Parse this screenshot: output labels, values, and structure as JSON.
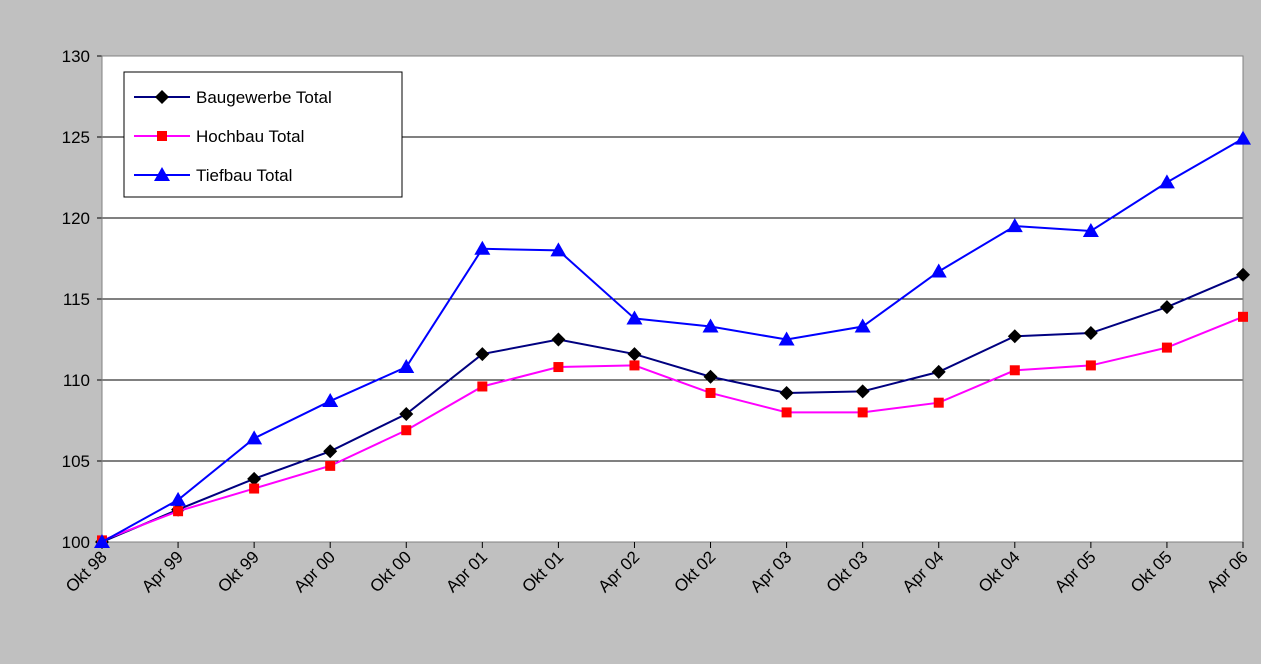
{
  "chart_data": {
    "type": "line",
    "categories": [
      "Okt 98",
      "Apr 99",
      "Okt 99",
      "Apr 00",
      "Okt 00",
      "Apr 01",
      "Okt 01",
      "Apr 02",
      "Okt 02",
      "Apr 03",
      "Okt 03",
      "Apr 04",
      "Okt 04",
      "Apr 05",
      "Okt 05",
      "Apr 06"
    ],
    "series": [
      {
        "name": "Baugewerbe Total",
        "color": "#000080",
        "marker_color": "#000000",
        "marker": "diamond",
        "values": [
          100,
          102,
          103.9,
          105.6,
          107.9,
          111.6,
          112.5,
          111.6,
          110.2,
          109.2,
          109.3,
          110.5,
          112.7,
          112.9,
          114.5,
          116.5
        ]
      },
      {
        "name": "Hochbau Total",
        "color": "#ff00ff",
        "marker_color": "#ff0000",
        "marker": "square",
        "values": [
          100.1,
          101.9,
          103.3,
          104.7,
          106.9,
          109.6,
          110.8,
          110.9,
          109.2,
          108.0,
          108.0,
          108.6,
          110.6,
          110.9,
          112.0,
          113.9
        ]
      },
      {
        "name": "Tiefbau Total",
        "color": "#0000ff",
        "marker_color": "#0000ff",
        "marker": "triangle",
        "values": [
          100,
          102.6,
          106.4,
          108.7,
          110.8,
          118.1,
          118.0,
          113.8,
          113.3,
          112.5,
          113.3,
          116.7,
          119.5,
          119.2,
          122.2,
          124.9
        ]
      }
    ],
    "ylim": [
      100,
      130
    ],
    "yticks": [
      100,
      105,
      110,
      115,
      120,
      125,
      130
    ],
    "grid": true,
    "legend": "upper left"
  }
}
